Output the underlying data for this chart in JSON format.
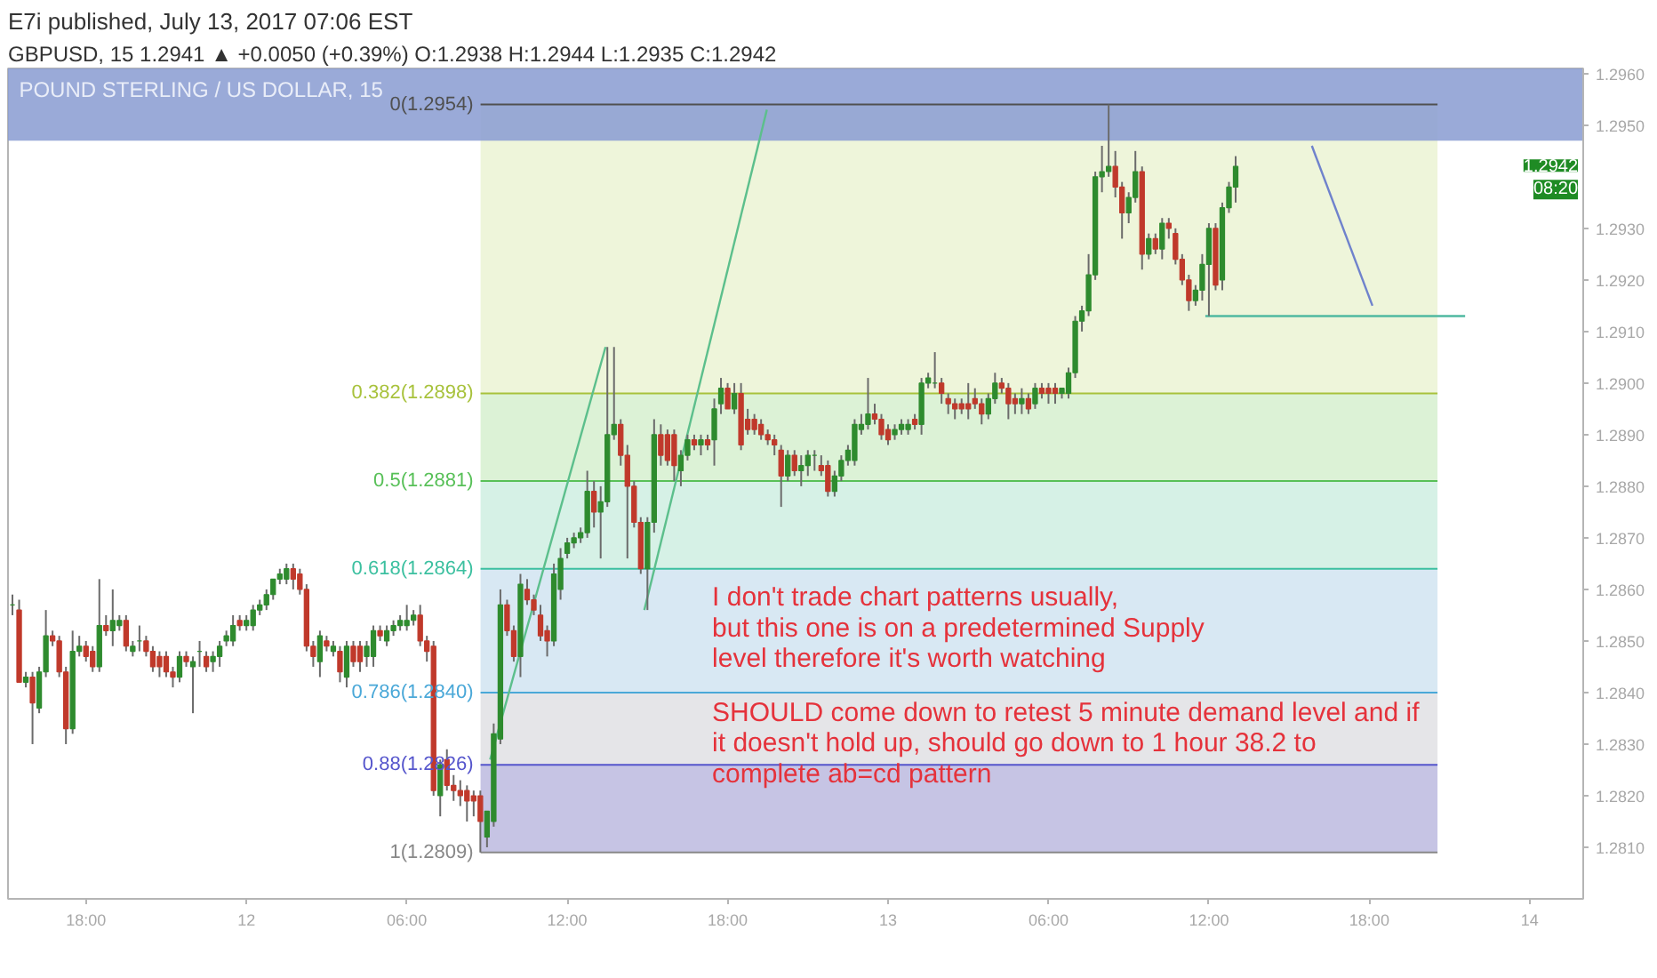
{
  "chart_data": {
    "type": "candlestick",
    "title": "E7i published, July 13, 2017 07:06 EST",
    "subtitle": "GBPUSD, 15  1.2941 ▲ +0.0050 (+0.39%) O:1.2938 H:1.2944 L:1.2935 C:1.2942",
    "x": [
      "2017-07-11T15:15",
      "2017-07-11T15:30",
      "2017-07-11T15:45",
      "2017-07-11T16:00",
      "2017-07-11T16:15",
      "2017-07-11T16:30",
      "2017-07-11T16:45",
      "2017-07-11T17:00",
      "2017-07-11T17:15",
      "2017-07-11T17:30",
      "2017-07-11T17:45",
      "2017-07-11T18:00",
      "2017-07-11T18:15",
      "2017-07-11T18:30",
      "2017-07-11T18:45",
      "2017-07-11T19:00",
      "2017-07-11T19:15",
      "2017-07-11T19:30",
      "2017-07-11T19:45",
      "2017-07-11T20:00",
      "2017-07-11T20:15",
      "2017-07-11T20:30",
      "2017-07-11T20:45",
      "2017-07-11T21:00",
      "2017-07-11T21:15",
      "2017-07-11T21:30",
      "2017-07-11T21:45",
      "2017-07-11T22:00",
      "2017-07-11T22:15",
      "2017-07-11T22:30",
      "2017-07-11T22:45",
      "2017-07-11T23:00",
      "2017-07-11T23:15",
      "2017-07-11T23:30",
      "2017-07-11T23:45",
      "2017-07-12T00:00",
      "2017-07-12T00:15",
      "2017-07-12T00:30",
      "2017-07-12T00:45",
      "2017-07-12T01:00",
      "2017-07-12T01:15",
      "2017-07-12T01:30",
      "2017-07-12T01:45",
      "2017-07-12T02:00",
      "2017-07-12T02:15",
      "2017-07-12T02:30",
      "2017-07-12T02:45",
      "2017-07-12T03:00",
      "2017-07-12T03:15",
      "2017-07-12T03:30",
      "2017-07-12T03:45",
      "2017-07-12T04:00",
      "2017-07-12T04:15",
      "2017-07-12T04:30",
      "2017-07-12T04:45",
      "2017-07-12T05:00",
      "2017-07-12T05:15",
      "2017-07-12T05:30",
      "2017-07-12T05:45",
      "2017-07-12T06:00",
      "2017-07-12T06:15",
      "2017-07-12T06:30",
      "2017-07-12T06:45",
      "2017-07-12T07:00",
      "2017-07-12T07:15",
      "2017-07-12T07:30",
      "2017-07-12T07:45",
      "2017-07-12T08:00",
      "2017-07-12T08:15",
      "2017-07-12T08:30",
      "2017-07-12T08:45",
      "2017-07-12T09:00",
      "2017-07-12T09:15",
      "2017-07-12T09:30",
      "2017-07-12T09:45",
      "2017-07-12T10:00",
      "2017-07-12T10:15",
      "2017-07-12T10:30",
      "2017-07-12T10:45",
      "2017-07-12T11:00",
      "2017-07-12T11:15",
      "2017-07-12T11:30",
      "2017-07-12T11:45",
      "2017-07-12T12:00",
      "2017-07-12T12:15",
      "2017-07-12T12:30",
      "2017-07-12T12:45",
      "2017-07-12T13:00",
      "2017-07-12T13:15",
      "2017-07-12T13:30",
      "2017-07-12T13:45",
      "2017-07-12T14:00",
      "2017-07-12T14:15",
      "2017-07-12T14:30",
      "2017-07-12T14:45",
      "2017-07-12T15:00",
      "2017-07-12T15:15",
      "2017-07-12T15:30",
      "2017-07-12T15:45",
      "2017-07-12T16:00",
      "2017-07-12T16:15",
      "2017-07-12T16:30",
      "2017-07-12T16:45",
      "2017-07-12T17:00",
      "2017-07-12T17:15",
      "2017-07-12T17:30",
      "2017-07-12T17:45",
      "2017-07-12T18:00",
      "2017-07-12T18:15",
      "2017-07-12T18:30",
      "2017-07-12T18:45",
      "2017-07-12T19:00",
      "2017-07-12T19:15",
      "2017-07-12T19:30",
      "2017-07-12T19:45",
      "2017-07-12T20:00",
      "2017-07-12T20:15",
      "2017-07-12T20:30",
      "2017-07-12T20:45",
      "2017-07-12T21:00",
      "2017-07-12T21:15",
      "2017-07-12T21:30",
      "2017-07-12T21:45",
      "2017-07-12T22:00",
      "2017-07-12T22:15",
      "2017-07-12T22:30",
      "2017-07-12T22:45",
      "2017-07-12T23:00",
      "2017-07-12T23:15",
      "2017-07-12T23:30",
      "2017-07-12T23:45",
      "2017-07-13T00:00",
      "2017-07-13T00:15",
      "2017-07-13T00:30",
      "2017-07-13T00:45",
      "2017-07-13T01:00",
      "2017-07-13T01:15",
      "2017-07-13T01:30",
      "2017-07-13T01:45",
      "2017-07-13T02:00",
      "2017-07-13T02:15",
      "2017-07-13T02:30",
      "2017-07-13T02:45",
      "2017-07-13T03:00",
      "2017-07-13T03:15",
      "2017-07-13T03:30",
      "2017-07-13T03:45",
      "2017-07-13T04:00",
      "2017-07-13T04:15",
      "2017-07-13T04:30",
      "2017-07-13T04:45",
      "2017-07-13T05:00",
      "2017-07-13T05:15",
      "2017-07-13T05:30",
      "2017-07-13T05:45",
      "2017-07-13T06:00",
      "2017-07-13T06:15",
      "2017-07-13T06:30",
      "2017-07-13T06:45",
      "2017-07-13T07:00",
      "2017-07-13T07:15",
      "2017-07-13T07:30",
      "2017-07-13T07:45",
      "2017-07-13T08:00",
      "2017-07-13T08:15",
      "2017-07-13T08:30",
      "2017-07-13T08:45",
      "2017-07-13T09:00",
      "2017-07-13T09:15",
      "2017-07-13T09:30",
      "2017-07-13T09:45",
      "2017-07-13T10:00",
      "2017-07-13T10:15",
      "2017-07-13T10:30",
      "2017-07-13T10:45",
      "2017-07-13T11:00",
      "2017-07-13T11:15",
      "2017-07-13T11:30",
      "2017-07-13T11:45",
      "2017-07-13T12:00",
      "2017-07-13T12:15",
      "2017-07-13T12:30",
      "2017-07-13T12:45",
      "2017-07-13T13:00"
    ],
    "ohlc": [
      [
        1.2857,
        1.2859,
        1.2855,
        1.2857
      ],
      [
        1.2856,
        1.2858,
        1.2842,
        1.2842
      ],
      [
        1.2842,
        1.2844,
        1.2841,
        1.2843
      ],
      [
        1.2843,
        1.2844,
        1.283,
        1.2838
      ],
      [
        1.2837,
        1.2845,
        1.2836,
        1.2844
      ],
      [
        1.2844,
        1.2856,
        1.2843,
        1.2851
      ],
      [
        1.2851,
        1.2852,
        1.2849,
        1.285
      ],
      [
        1.285,
        1.2851,
        1.2843,
        1.2844
      ],
      [
        1.2844,
        1.2845,
        1.283,
        1.2833
      ],
      [
        1.2833,
        1.2852,
        1.2832,
        1.2848
      ],
      [
        1.2848,
        1.2851,
        1.2847,
        1.2849
      ],
      [
        1.2849,
        1.285,
        1.2846,
        1.2847
      ],
      [
        1.2848,
        1.2849,
        1.2844,
        1.2845
      ],
      [
        1.2845,
        1.2862,
        1.2844,
        1.2853
      ],
      [
        1.2853,
        1.2855,
        1.2851,
        1.2852
      ],
      [
        1.2852,
        1.286,
        1.2849,
        1.2854
      ],
      [
        1.2853,
        1.2855,
        1.2852,
        1.2854
      ],
      [
        1.2854,
        1.2855,
        1.2848,
        1.2849
      ],
      [
        1.2848,
        1.285,
        1.2847,
        1.2849
      ],
      [
        1.285,
        1.2853,
        1.2848,
        1.285
      ],
      [
        1.285,
        1.2851,
        1.2847,
        1.2848
      ],
      [
        1.2848,
        1.2849,
        1.2844,
        1.2845
      ],
      [
        1.2847,
        1.2848,
        1.2843,
        1.2845
      ],
      [
        1.2847,
        1.2848,
        1.2843,
        1.2844
      ],
      [
        1.2844,
        1.2845,
        1.2841,
        1.2843
      ],
      [
        1.2843,
        1.2848,
        1.2842,
        1.2847
      ],
      [
        1.2847,
        1.2848,
        1.2845,
        1.2846
      ],
      [
        1.2845,
        1.2847,
        1.2836,
        1.2846
      ],
      [
        1.2848,
        1.285,
        1.2845,
        1.2848
      ],
      [
        1.2847,
        1.2848,
        1.2844,
        1.2845
      ],
      [
        1.2846,
        1.2848,
        1.2844,
        1.2847
      ],
      [
        1.2847,
        1.285,
        1.2845,
        1.2849
      ],
      [
        1.285,
        1.2852,
        1.2849,
        1.2851
      ],
      [
        1.285,
        1.2855,
        1.2849,
        1.2853
      ],
      [
        1.2854,
        1.2855,
        1.2852,
        1.2853
      ],
      [
        1.2853,
        1.2855,
        1.2852,
        1.2854
      ],
      [
        1.2853,
        1.2857,
        1.2852,
        1.2856
      ],
      [
        1.2856,
        1.2858,
        1.2855,
        1.2857
      ],
      [
        1.2857,
        1.286,
        1.2856,
        1.2859
      ],
      [
        1.2859,
        1.2862,
        1.2858,
        1.2862
      ],
      [
        1.2862,
        1.2864,
        1.2861,
        1.2863
      ],
      [
        1.2862,
        1.2865,
        1.2861,
        1.2864
      ],
      [
        1.2864,
        1.2865,
        1.286,
        1.2862
      ],
      [
        1.2863,
        1.2864,
        1.2859,
        1.286
      ],
      [
        1.286,
        1.2861,
        1.2848,
        1.2849
      ],
      [
        1.2849,
        1.285,
        1.2845,
        1.2847
      ],
      [
        1.2846,
        1.2852,
        1.2843,
        1.2851
      ],
      [
        1.285,
        1.2851,
        1.2848,
        1.2849
      ],
      [
        1.2848,
        1.285,
        1.2847,
        1.2849
      ],
      [
        1.2848,
        1.2849,
        1.2842,
        1.2844
      ],
      [
        1.2843,
        1.285,
        1.2841,
        1.2849
      ],
      [
        1.2849,
        1.285,
        1.2845,
        1.2846
      ],
      [
        1.2849,
        1.285,
        1.2844,
        1.2846
      ],
      [
        1.2847,
        1.285,
        1.2845,
        1.2849
      ],
      [
        1.2847,
        1.2853,
        1.2845,
        1.2852
      ],
      [
        1.2852,
        1.2853,
        1.285,
        1.2851
      ],
      [
        1.285,
        1.2853,
        1.2849,
        1.2852
      ],
      [
        1.2852,
        1.2854,
        1.2851,
        1.2853
      ],
      [
        1.2853,
        1.2855,
        1.2852,
        1.2854
      ],
      [
        1.2853,
        1.2857,
        1.2852,
        1.2854
      ],
      [
        1.2854,
        1.2856,
        1.2853,
        1.2855
      ],
      [
        1.2855,
        1.2857,
        1.2849,
        1.285
      ],
      [
        1.285,
        1.2851,
        1.2846,
        1.2848
      ],
      [
        1.2849,
        1.285,
        1.282,
        1.2821
      ],
      [
        1.282,
        1.2827,
        1.2816,
        1.2826
      ],
      [
        1.2827,
        1.2829,
        1.2821,
        1.2822
      ],
      [
        1.2822,
        1.2824,
        1.2819,
        1.2821
      ],
      [
        1.2821,
        1.2823,
        1.2818,
        1.282
      ],
      [
        1.2821,
        1.2822,
        1.2815,
        1.2819
      ],
      [
        1.282,
        1.2821,
        1.2816,
        1.2819
      ],
      [
        1.282,
        1.2821,
        1.2809,
        1.2815
      ],
      [
        1.2812,
        1.2817,
        1.281,
        1.2817
      ],
      [
        1.2815,
        1.2834,
        1.2814,
        1.2832
      ],
      [
        1.2831,
        1.286,
        1.283,
        1.2857
      ],
      [
        1.2857,
        1.2858,
        1.2851,
        1.2852
      ],
      [
        1.2852,
        1.2853,
        1.2846,
        1.2847
      ],
      [
        1.2847,
        1.2863,
        1.2843,
        1.2861
      ],
      [
        1.286,
        1.2862,
        1.2857,
        1.2858
      ],
      [
        1.2858,
        1.2859,
        1.2855,
        1.2856
      ],
      [
        1.2855,
        1.2857,
        1.285,
        1.2851
      ],
      [
        1.2852,
        1.2853,
        1.2847,
        1.285
      ],
      [
        1.285,
        1.2865,
        1.2849,
        1.2863
      ],
      [
        1.286,
        1.2868,
        1.2858,
        1.2866
      ],
      [
        1.2867,
        1.287,
        1.2866,
        1.2869
      ],
      [
        1.2869,
        1.2871,
        1.2868,
        1.287
      ],
      [
        1.287,
        1.2872,
        1.2869,
        1.2871
      ],
      [
        1.2871,
        1.2883,
        1.287,
        1.2879
      ],
      [
        1.2879,
        1.2881,
        1.2872,
        1.2875
      ],
      [
        1.2875,
        1.288,
        1.2866,
        1.2877
      ],
      [
        1.2877,
        1.2907,
        1.2876,
        1.289
      ],
      [
        1.289,
        1.2907,
        1.2889,
        1.2892
      ],
      [
        1.2892,
        1.2893,
        1.2884,
        1.2886
      ],
      [
        1.2886,
        1.2888,
        1.2866,
        1.288
      ],
      [
        1.288,
        1.2881,
        1.2872,
        1.2873
      ],
      [
        1.2873,
        1.2874,
        1.2863,
        1.2864
      ],
      [
        1.2864,
        1.2874,
        1.2856,
        1.2873
      ],
      [
        1.2873,
        1.2893,
        1.2871,
        1.289
      ],
      [
        1.289,
        1.2892,
        1.2884,
        1.2886
      ],
      [
        1.289,
        1.2891,
        1.2884,
        1.2885
      ],
      [
        1.289,
        1.2891,
        1.2881,
        1.2884
      ],
      [
        1.2883,
        1.2887,
        1.288,
        1.2886
      ],
      [
        1.2886,
        1.289,
        1.2885,
        1.2889
      ],
      [
        1.2889,
        1.289,
        1.2887,
        1.2888
      ],
      [
        1.2888,
        1.289,
        1.2886,
        1.2889
      ],
      [
        1.2889,
        1.289,
        1.2887,
        1.2888
      ],
      [
        1.2889,
        1.2897,
        1.2884,
        1.2895
      ],
      [
        1.2896,
        1.2901,
        1.2894,
        1.2899
      ],
      [
        1.2899,
        1.29,
        1.2895,
        1.2895
      ],
      [
        1.2895,
        1.29,
        1.2894,
        1.2898
      ],
      [
        1.2898,
        1.29,
        1.2887,
        1.2888
      ],
      [
        1.2893,
        1.2895,
        1.289,
        1.2891
      ],
      [
        1.2893,
        1.2894,
        1.289,
        1.2891
      ],
      [
        1.2892,
        1.2893,
        1.2889,
        1.289
      ],
      [
        1.289,
        1.2891,
        1.2888,
        1.2889
      ],
      [
        1.2889,
        1.289,
        1.2886,
        1.2888
      ],
      [
        1.2887,
        1.2888,
        1.2876,
        1.2882
      ],
      [
        1.2882,
        1.2887,
        1.2881,
        1.2886
      ],
      [
        1.2886,
        1.2887,
        1.2882,
        1.2883
      ],
      [
        1.2883,
        1.2886,
        1.288,
        1.2884
      ],
      [
        1.2884,
        1.2887,
        1.2882,
        1.2886
      ],
      [
        1.2886,
        1.2887,
        1.2883,
        1.2886
      ],
      [
        1.2884,
        1.2886,
        1.2882,
        1.2883
      ],
      [
        1.2884,
        1.2885,
        1.2878,
        1.2879
      ],
      [
        1.2879,
        1.2883,
        1.2878,
        1.2882
      ],
      [
        1.2882,
        1.2886,
        1.2881,
        1.2885
      ],
      [
        1.2885,
        1.2888,
        1.2884,
        1.2887
      ],
      [
        1.2885,
        1.2893,
        1.2884,
        1.2892
      ],
      [
        1.2891,
        1.2894,
        1.289,
        1.2892
      ],
      [
        1.2892,
        1.2901,
        1.2891,
        1.2894
      ],
      [
        1.2894,
        1.2896,
        1.2892,
        1.2893
      ],
      [
        1.2893,
        1.2894,
        1.2889,
        1.289
      ],
      [
        1.2891,
        1.2892,
        1.2888,
        1.2889
      ],
      [
        1.289,
        1.2892,
        1.2889,
        1.2891
      ],
      [
        1.2891,
        1.2893,
        1.289,
        1.2892
      ],
      [
        1.2891,
        1.2893,
        1.289,
        1.2892
      ],
      [
        1.2893,
        1.2894,
        1.2891,
        1.2892
      ],
      [
        1.2892,
        1.2901,
        1.289,
        1.29
      ],
      [
        1.29,
        1.2902,
        1.2899,
        1.2901
      ],
      [
        1.29,
        1.2906,
        1.2899,
        1.29
      ],
      [
        1.29,
        1.2901,
        1.2896,
        1.2898
      ],
      [
        1.2897,
        1.2898,
        1.2894,
        1.2896
      ],
      [
        1.2896,
        1.2897,
        1.2893,
        1.2895
      ],
      [
        1.2896,
        1.2897,
        1.2894,
        1.2895
      ],
      [
        1.2896,
        1.29,
        1.2893,
        1.2895
      ],
      [
        1.2897,
        1.2899,
        1.2895,
        1.2896
      ],
      [
        1.2896,
        1.2897,
        1.2892,
        1.2894
      ],
      [
        1.2894,
        1.2898,
        1.2893,
        1.2897
      ],
      [
        1.2897,
        1.2902,
        1.2896,
        1.29
      ],
      [
        1.29,
        1.2901,
        1.2898,
        1.2899
      ],
      [
        1.2899,
        1.29,
        1.2893,
        1.2896
      ],
      [
        1.2897,
        1.2898,
        1.2894,
        1.2896
      ],
      [
        1.2896,
        1.2899,
        1.2894,
        1.2897
      ],
      [
        1.2897,
        1.2898,
        1.2894,
        1.2895
      ],
      [
        1.2896,
        1.29,
        1.2895,
        1.2899
      ],
      [
        1.2899,
        1.29,
        1.2897,
        1.2898
      ],
      [
        1.2899,
        1.29,
        1.2896,
        1.2898
      ],
      [
        1.2899,
        1.29,
        1.2896,
        1.2898
      ],
      [
        1.2898,
        1.2899,
        1.2897,
        1.2899
      ],
      [
        1.2898,
        1.2903,
        1.2897,
        1.2902
      ],
      [
        1.2902,
        1.2913,
        1.2901,
        1.2912
      ],
      [
        1.2912,
        1.2915,
        1.291,
        1.2914
      ],
      [
        1.2914,
        1.2925,
        1.2913,
        1.2921
      ],
      [
        1.2921,
        1.2941,
        1.292,
        1.294
      ],
      [
        1.294,
        1.2946,
        1.2937,
        1.2941
      ],
      [
        1.2941,
        1.2954,
        1.294,
        1.2942
      ],
      [
        1.2942,
        1.2945,
        1.2936,
        1.2938
      ],
      [
        1.2938,
        1.2939,
        1.2928,
        1.2933
      ],
      [
        1.2933,
        1.2937,
        1.2931,
        1.2936
      ],
      [
        1.2936,
        1.2945,
        1.2935,
        1.2941
      ],
      [
        1.2941,
        1.2942,
        1.2922,
        1.2925
      ],
      [
        1.2925,
        1.2929,
        1.2924,
        1.2928
      ],
      [
        1.2928,
        1.2929,
        1.2925,
        1.2926
      ],
      [
        1.2926,
        1.2932,
        1.2924,
        1.2931
      ],
      [
        1.2931,
        1.2932,
        1.2928,
        1.293
      ],
      [
        1.2929,
        1.293,
        1.2923,
        1.2924
      ],
      [
        1.2924,
        1.2925,
        1.2919,
        1.292
      ],
      [
        1.292,
        1.2921,
        1.2914,
        1.2916
      ],
      [
        1.2916,
        1.2919,
        1.2915,
        1.2918
      ],
      [
        1.2918,
        1.2925,
        1.2916,
        1.2923
      ],
      [
        1.2923,
        1.2931,
        1.2913,
        1.293
      ],
      [
        1.293,
        1.2931,
        1.2918,
        1.2919
      ],
      [
        1.292,
        1.2935,
        1.2918,
        1.2934
      ],
      [
        1.2934,
        1.2939,
        1.2933,
        1.2938
      ],
      [
        1.2938,
        1.2944,
        1.2935,
        1.2942
      ]
    ],
    "colors": [
      "#2e8b2e",
      "#c0392b",
      "#2e8b2e",
      "#c0392b",
      "#2e8b2e",
      "#2e8b2e",
      "#c0392b",
      "#c0392b",
      "#c0392b",
      "#2e8b2e",
      "#2e8b2e",
      "#c0392b",
      "#c0392b",
      "#2e8b2e",
      "#c0392b",
      "#2e8b2e",
      "#2e8b2e",
      "#c0392b",
      "#2e8b2e",
      "#2e8b2e",
      "#c0392b",
      "#c0392b",
      "#c0392b",
      "#c0392b",
      "#c0392b",
      "#2e8b2e",
      "#c0392b",
      "#2e8b2e",
      "#2e8b2e",
      "#c0392b",
      "#2e8b2e",
      "#2e8b2e",
      "#2e8b2e",
      "#2e8b2e",
      "#c0392b",
      "#2e8b2e",
      "#2e8b2e",
      "#2e8b2e",
      "#2e8b2e",
      "#2e8b2e",
      "#2e8b2e",
      "#2e8b2e",
      "#c0392b",
      "#c0392b",
      "#c0392b",
      "#c0392b",
      "#2e8b2e",
      "#c0392b",
      "#2e8b2e",
      "#c0392b",
      "#2e8b2e",
      "#c0392b",
      "#c0392b",
      "#2e8b2e",
      "#2e8b2e",
      "#c0392b",
      "#2e8b2e",
      "#2e8b2e",
      "#2e8b2e",
      "#2e8b2e",
      "#2e8b2e",
      "#c0392b",
      "#c0392b",
      "#c0392b",
      "#2e8b2e",
      "#c0392b",
      "#c0392b",
      "#c0392b",
      "#c0392b",
      "#c0392b",
      "#c0392b",
      "#2e8b2e",
      "#2e8b2e",
      "#2e8b2e",
      "#c0392b",
      "#c0392b",
      "#2e8b2e",
      "#c0392b",
      "#c0392b",
      "#c0392b",
      "#c0392b",
      "#2e8b2e",
      "#2e8b2e",
      "#2e8b2e",
      "#2e8b2e",
      "#2e8b2e",
      "#2e8b2e",
      "#c0392b",
      "#2e8b2e",
      "#2e8b2e",
      "#2e8b2e",
      "#c0392b",
      "#c0392b",
      "#c0392b",
      "#c0392b",
      "#2e8b2e",
      "#2e8b2e",
      "#c0392b",
      "#c0392b",
      "#c0392b",
      "#2e8b2e",
      "#2e8b2e",
      "#c0392b",
      "#2e8b2e",
      "#c0392b",
      "#2e8b2e",
      "#2e8b2e",
      "#c0392b",
      "#2e8b2e",
      "#c0392b",
      "#c0392b",
      "#c0392b",
      "#c0392b",
      "#c0392b",
      "#c0392b",
      "#c0392b",
      "#2e8b2e",
      "#c0392b",
      "#2e8b2e",
      "#2e8b2e",
      "#2e8b2e",
      "#c0392b",
      "#c0392b",
      "#2e8b2e",
      "#2e8b2e",
      "#2e8b2e",
      "#2e8b2e",
      "#2e8b2e",
      "#2e8b2e",
      "#c0392b",
      "#c0392b",
      "#c0392b",
      "#2e8b2e",
      "#2e8b2e",
      "#2e8b2e",
      "#c0392b",
      "#2e8b2e",
      "#2e8b2e",
      "#2e8b2e",
      "#c0392b",
      "#c0392b",
      "#c0392b",
      "#c0392b",
      "#c0392b",
      "#c0392b",
      "#c0392b",
      "#2e8b2e",
      "#2e8b2e",
      "#c0392b",
      "#c0392b",
      "#c0392b",
      "#2e8b2e",
      "#c0392b",
      "#2e8b2e",
      "#c0392b",
      "#c0392b",
      "#c0392b",
      "#2e8b2e",
      "#2e8b2e",
      "#2e8b2e",
      "#2e8b2e",
      "#2e8b2e",
      "#2e8b2e",
      "#2e8b2e",
      "#2e8b2e",
      "#c0392b",
      "#c0392b",
      "#2e8b2e",
      "#2e8b2e",
      "#c0392b",
      "#2e8b2e",
      "#c0392b",
      "#2e8b2e",
      "#c0392b",
      "#c0392b",
      "#c0392b",
      "#c0392b",
      "#2e8b2e",
      "#2e8b2e",
      "#2e8b2e",
      "#c0392b",
      "#2e8b2e",
      "#2e8b2e",
      "#2e8b2e"
    ],
    "series": [
      {
        "type": "line",
        "x": [
          "2017-07-12T09:07",
          "2017-07-12T13:26"
        ],
        "values": [
          1.2827,
          1.2907
        ],
        "color": "#5cbf8c"
      },
      {
        "type": "line",
        "x": [
          "2017-07-12T14:53",
          "2017-07-12T19:28"
        ],
        "values": [
          1.2856,
          1.2953
        ],
        "color": "#5cbf8c"
      },
      {
        "type": "line",
        "x": [
          "2017-07-13T11:52",
          "2017-07-13T21:35"
        ],
        "values": [
          1.2913,
          1.2913
        ],
        "color": "#4fb8a0"
      },
      {
        "type": "line",
        "x": [
          "2017-07-13T15:51",
          "2017-07-13T18:07"
        ],
        "values": [
          1.2946,
          1.2915
        ],
        "color": "#6f82cc"
      }
    ],
    "xlim": [
      "2017-07-11T15:05",
      "2017-07-14T02:00"
    ],
    "xticks": [
      {
        "value": "2017-07-11T18:00",
        "label": "18:00"
      },
      {
        "value": "2017-07-12",
        "label": "12"
      },
      {
        "value": "2017-07-12T06:00",
        "label": "06:00"
      },
      {
        "value": "2017-07-12T12:00",
        "label": "12:00"
      },
      {
        "value": "2017-07-12T18:00",
        "label": "18:00"
      },
      {
        "value": "2017-07-13",
        "label": "13"
      },
      {
        "value": "2017-07-13T06:00",
        "label": "06:00"
      },
      {
        "value": "2017-07-13T12:00",
        "label": "12:00"
      },
      {
        "value": "2017-07-13T18:00",
        "label": "18:00"
      },
      {
        "value": "2017-07-14",
        "label": "14"
      }
    ],
    "ylim": [
      1.28,
      1.2961
    ],
    "yticks": [
      {
        "value": 1.281,
        "label": "1.2810"
      },
      {
        "value": 1.282,
        "label": "1.2820"
      },
      {
        "value": 1.283,
        "label": "1.2830"
      },
      {
        "value": 1.284,
        "label": "1.2840"
      },
      {
        "value": 1.285,
        "label": "1.2850"
      },
      {
        "value": 1.286,
        "label": "1.2860"
      },
      {
        "value": 1.287,
        "label": "1.2870"
      },
      {
        "value": 1.288,
        "label": "1.2880"
      },
      {
        "value": 1.289,
        "label": "1.2890"
      },
      {
        "value": 1.29,
        "label": "1.2900"
      },
      {
        "value": 1.291,
        "label": "1.2910"
      },
      {
        "value": 1.292,
        "label": "1.2920"
      },
      {
        "value": 1.293,
        "label": "1.2930"
      },
      {
        "value": 1.295,
        "label": "1.2950"
      },
      {
        "value": 1.296,
        "label": "1.2960"
      }
    ],
    "bands": [
      {
        "axis": "y",
        "from": 1.2898,
        "to": 1.2954,
        "color": "#eef5da"
      },
      {
        "axis": "y",
        "from": 1.2881,
        "to": 1.2898,
        "color": "#dcf2d6"
      },
      {
        "axis": "y",
        "from": 1.2864,
        "to": 1.2881,
        "color": "#d6f1e6"
      },
      {
        "axis": "y",
        "from": 1.284,
        "to": 1.2864,
        "color": "#d8e8f3"
      },
      {
        "axis": "y",
        "from": 1.2826,
        "to": 1.284,
        "color": "#e5e5e8"
      },
      {
        "axis": "y",
        "from": 1.2809,
        "to": 1.2826,
        "color": "#c6c4e4"
      },
      {
        "axis": "y",
        "from": 1.2947,
        "to": 1.2961,
        "color": "#8c9ed3"
      }
    ],
    "ref_lines": [
      {
        "axis": "y",
        "value": 1.2954,
        "label": "0(1.2954)",
        "color": "#505050"
      },
      {
        "axis": "y",
        "value": 1.2898,
        "label": "0.382(1.2898)",
        "color": "#a8c23c"
      },
      {
        "axis": "y",
        "value": 1.2881,
        "label": "0.5(1.2881)",
        "color": "#58c058"
      },
      {
        "axis": "y",
        "value": 1.2864,
        "label": "0.618(1.2864)",
        "color": "#3cc0a0"
      },
      {
        "axis": "y",
        "value": 1.284,
        "label": "0.786(1.2840)",
        "color": "#4aa8d8"
      },
      {
        "axis": "y",
        "value": 1.2826,
        "label": "0.88(1.2826)",
        "color": "#5555cc"
      },
      {
        "axis": "y",
        "value": 1.2809,
        "label": "1(1.2809)",
        "color": "#888888"
      }
    ],
    "annotations": [
      "POUND STERLING / US DOLLAR, 15",
      "I don't trade chart patterns usually,\nbut this one is on a predetermined Supply\nlevel therefore it's worth watching",
      "SHOULD come down to retest 5 minute demand level and if\nit doesn't hold up, should go down to 1 hour 38.2 to\ncomplete ab=cd pattern",
      "1.2942",
      "08:20"
    ]
  }
}
